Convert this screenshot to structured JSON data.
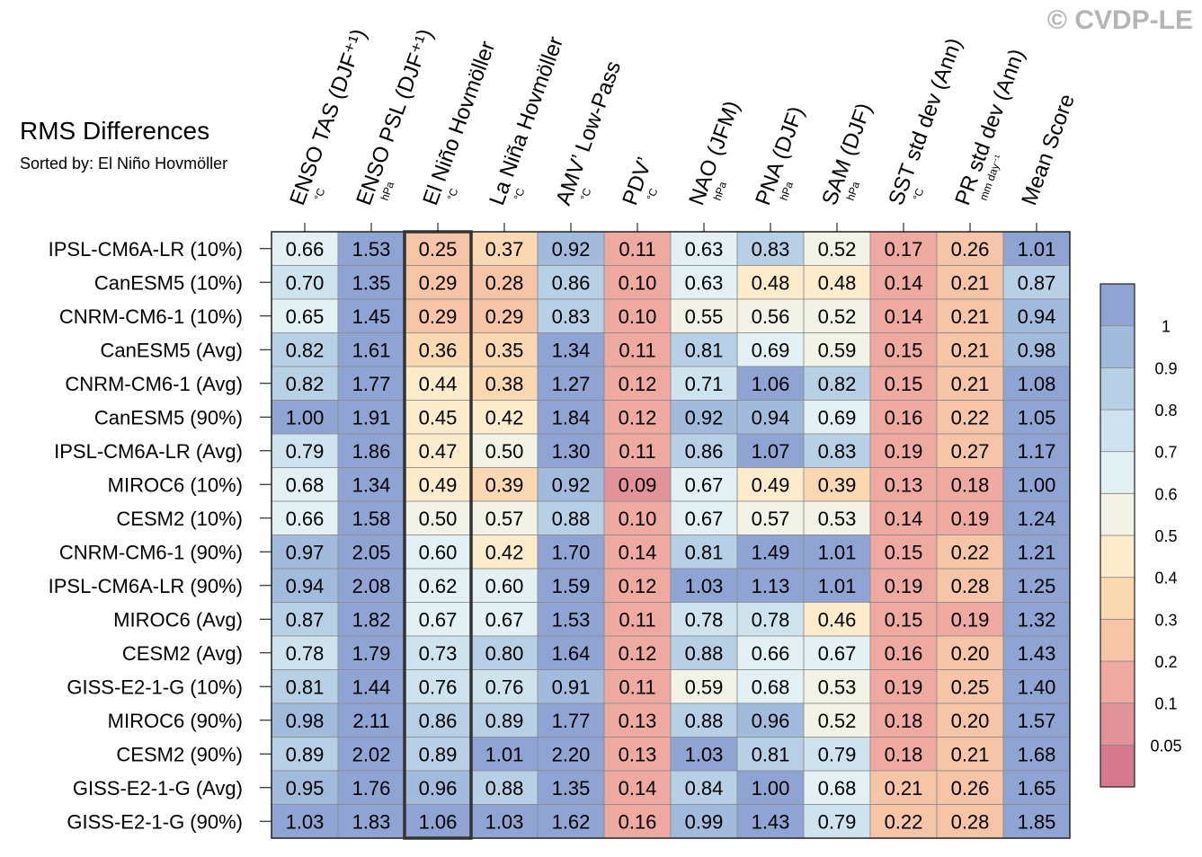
{
  "copyright": "© CVDP-LE",
  "chart_data": {
    "type": "heatmap",
    "title": "RMS Differences",
    "subtitle": "Sorted by: El Niño Hovmöller",
    "highlight_column": 2,
    "columns": [
      {
        "label": "ENSO TAS (DJF⁺¹)",
        "unit": "°C"
      },
      {
        "label": "ENSO PSL (DJF⁺¹)",
        "unit": "hPa"
      },
      {
        "label": "El Niño Hovmöller",
        "unit": "°C"
      },
      {
        "label": "La Niña Hovmöller",
        "unit": "°C"
      },
      {
        "label": "AMV’ Low-Pass",
        "unit": "°C"
      },
      {
        "label": "PDV’",
        "unit": "°C"
      },
      {
        "label": "NAO (JFM)",
        "unit": "hPa"
      },
      {
        "label": "PNA (DJF)",
        "unit": "hPa"
      },
      {
        "label": "SAM (DJF)",
        "unit": "hPa"
      },
      {
        "label": "SST std dev (Ann)",
        "unit": "°C"
      },
      {
        "label": "PR std dev (Ann)",
        "unit": "mm day⁻¹"
      },
      {
        "label": "Mean Score",
        "unit": ""
      }
    ],
    "rows": [
      {
        "name": "IPSL-CM6A-LR (10%)",
        "values": [
          "0.66",
          "1.53",
          "0.25",
          "0.37",
          "0.92",
          "0.11",
          "0.63",
          "0.83",
          "0.52",
          "0.17",
          "0.26",
          "1.01"
        ]
      },
      {
        "name": "CanESM5 (10%)",
        "values": [
          "0.70",
          "1.35",
          "0.29",
          "0.28",
          "0.86",
          "0.10",
          "0.63",
          "0.48",
          "0.48",
          "0.14",
          "0.21",
          "0.87"
        ]
      },
      {
        "name": "CNRM-CM6-1 (10%)",
        "values": [
          "0.65",
          "1.45",
          "0.29",
          "0.29",
          "0.83",
          "0.10",
          "0.55",
          "0.56",
          "0.52",
          "0.14",
          "0.21",
          "0.94"
        ]
      },
      {
        "name": "CanESM5 (Avg)",
        "values": [
          "0.82",
          "1.61",
          "0.36",
          "0.35",
          "1.34",
          "0.11",
          "0.81",
          "0.69",
          "0.59",
          "0.15",
          "0.21",
          "0.98"
        ]
      },
      {
        "name": "CNRM-CM6-1 (Avg)",
        "values": [
          "0.82",
          "1.77",
          "0.44",
          "0.38",
          "1.27",
          "0.12",
          "0.71",
          "1.06",
          "0.82",
          "0.15",
          "0.21",
          "1.08"
        ]
      },
      {
        "name": "CanESM5 (90%)",
        "values": [
          "1.00",
          "1.91",
          "0.45",
          "0.42",
          "1.84",
          "0.12",
          "0.92",
          "0.94",
          "0.69",
          "0.16",
          "0.22",
          "1.05"
        ]
      },
      {
        "name": "IPSL-CM6A-LR (Avg)",
        "values": [
          "0.79",
          "1.86",
          "0.47",
          "0.50",
          "1.30",
          "0.11",
          "0.86",
          "1.07",
          "0.83",
          "0.19",
          "0.27",
          "1.17"
        ]
      },
      {
        "name": "MIROC6 (10%)",
        "values": [
          "0.68",
          "1.34",
          "0.49",
          "0.39",
          "0.92",
          "0.09",
          "0.67",
          "0.49",
          "0.39",
          "0.13",
          "0.18",
          "1.00"
        ]
      },
      {
        "name": "CESM2 (10%)",
        "values": [
          "0.66",
          "1.58",
          "0.50",
          "0.57",
          "0.88",
          "0.10",
          "0.67",
          "0.57",
          "0.53",
          "0.14",
          "0.19",
          "1.24"
        ]
      },
      {
        "name": "CNRM-CM6-1 (90%)",
        "values": [
          "0.97",
          "2.05",
          "0.60",
          "0.42",
          "1.70",
          "0.14",
          "0.81",
          "1.49",
          "1.01",
          "0.15",
          "0.22",
          "1.21"
        ]
      },
      {
        "name": "IPSL-CM6A-LR (90%)",
        "values": [
          "0.94",
          "2.08",
          "0.62",
          "0.60",
          "1.59",
          "0.12",
          "1.03",
          "1.13",
          "1.01",
          "0.19",
          "0.28",
          "1.25"
        ]
      },
      {
        "name": "MIROC6 (Avg)",
        "values": [
          "0.87",
          "1.82",
          "0.67",
          "0.67",
          "1.53",
          "0.11",
          "0.78",
          "0.78",
          "0.46",
          "0.15",
          "0.19",
          "1.32"
        ]
      },
      {
        "name": "CESM2 (Avg)",
        "values": [
          "0.78",
          "1.79",
          "0.73",
          "0.80",
          "1.64",
          "0.12",
          "0.88",
          "0.66",
          "0.67",
          "0.16",
          "0.20",
          "1.43"
        ]
      },
      {
        "name": "GISS-E2-1-G (10%)",
        "values": [
          "0.81",
          "1.44",
          "0.76",
          "0.76",
          "0.91",
          "0.11",
          "0.59",
          "0.68",
          "0.53",
          "0.19",
          "0.25",
          "1.40"
        ]
      },
      {
        "name": "MIROC6 (90%)",
        "values": [
          "0.98",
          "2.11",
          "0.86",
          "0.89",
          "1.77",
          "0.13",
          "0.88",
          "0.96",
          "0.52",
          "0.18",
          "0.20",
          "1.57"
        ]
      },
      {
        "name": "CESM2 (90%)",
        "values": [
          "0.89",
          "2.02",
          "0.89",
          "1.01",
          "2.20",
          "0.13",
          "1.03",
          "0.81",
          "0.79",
          "0.18",
          "0.21",
          "1.68"
        ]
      },
      {
        "name": "GISS-E2-1-G (Avg)",
        "values": [
          "0.95",
          "1.76",
          "0.96",
          "0.88",
          "1.35",
          "0.14",
          "0.84",
          "1.00",
          "0.68",
          "0.21",
          "0.26",
          "1.65"
        ]
      },
      {
        "name": "GISS-E2-1-G (90%)",
        "values": [
          "1.03",
          "1.83",
          "1.06",
          "1.03",
          "1.62",
          "0.16",
          "0.99",
          "1.43",
          "0.79",
          "0.22",
          "0.28",
          "1.85"
        ]
      }
    ],
    "colorbar": {
      "levels": [
        "0.05",
        "0.1",
        "0.2",
        "0.3",
        "0.4",
        "0.5",
        "0.6",
        "0.7",
        "0.8",
        "0.9",
        "1"
      ],
      "colors": [
        "#d6798f",
        "#e2939a",
        "#eeaaa0",
        "#f6c4a6",
        "#fad8b2",
        "#fdeccc",
        "#f2f2e6",
        "#e3f0f4",
        "#cfe3ee",
        "#b8d0e6",
        "#a2bbdc",
        "#8fa4d2"
      ]
    }
  }
}
